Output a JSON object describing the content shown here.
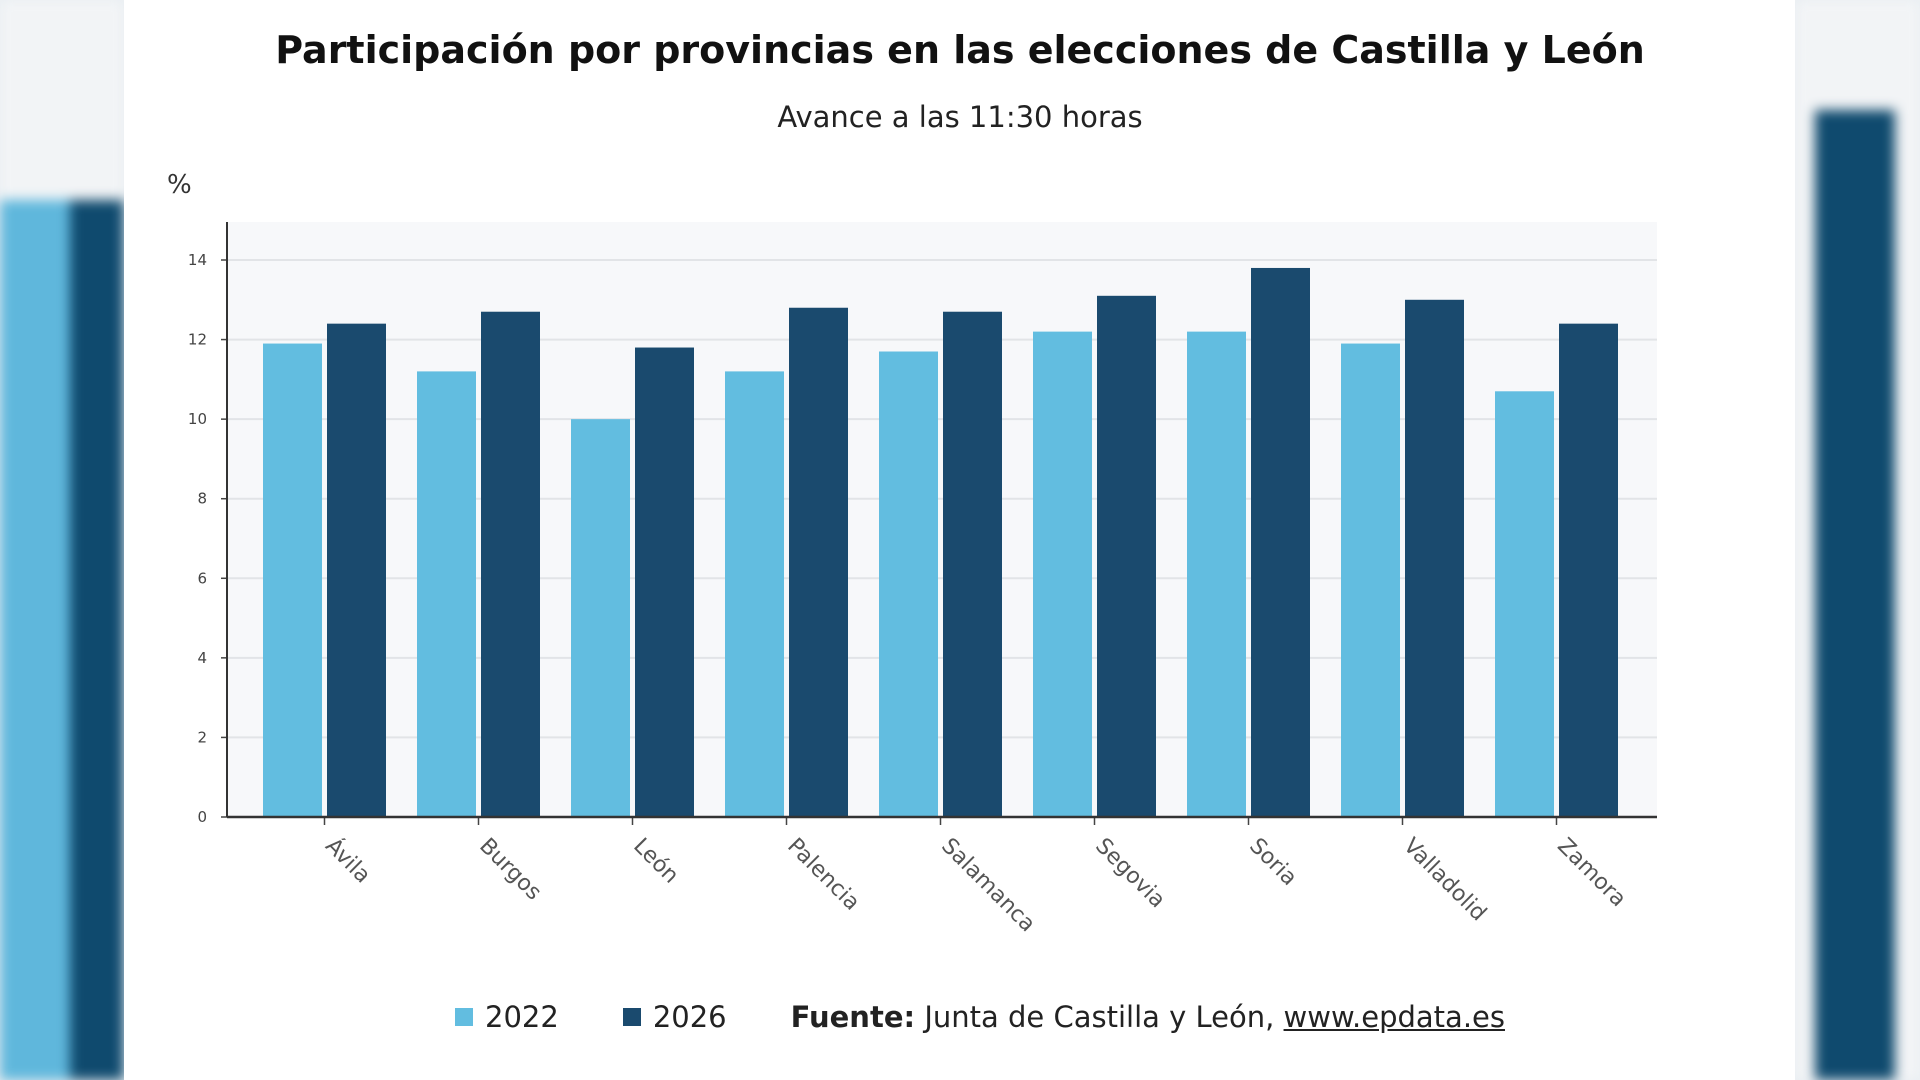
{
  "chart_data": {
    "type": "bar",
    "title": "Participación por provincias en las elecciones de Castilla y León",
    "subtitle": "Avance a las 11:30 horas",
    "ylabel": "%",
    "ylim": [
      0,
      14
    ],
    "yticks": [
      0,
      2,
      4,
      6,
      8,
      10,
      12,
      14
    ],
    "grid": true,
    "legend_placement": "bottom",
    "categories": [
      "Ávila",
      "Burgos",
      "León",
      "Palencia",
      "Salamanca",
      "Segovia",
      "Soria",
      "Valladolid",
      "Zamora"
    ],
    "series": [
      {
        "name": "2022",
        "color": "#62bde0",
        "values": [
          11.9,
          11.2,
          10.0,
          11.2,
          11.7,
          12.2,
          12.2,
          11.9,
          10.7
        ]
      },
      {
        "name": "2026",
        "color": "#1a4a6e",
        "values": [
          12.4,
          12.7,
          11.8,
          12.8,
          12.7,
          13.1,
          13.8,
          13.0,
          12.4
        ]
      }
    ],
    "source_label": "Fuente:",
    "source_text": "Junta de Castilla y León,",
    "source_link": "www.epdata.es"
  }
}
